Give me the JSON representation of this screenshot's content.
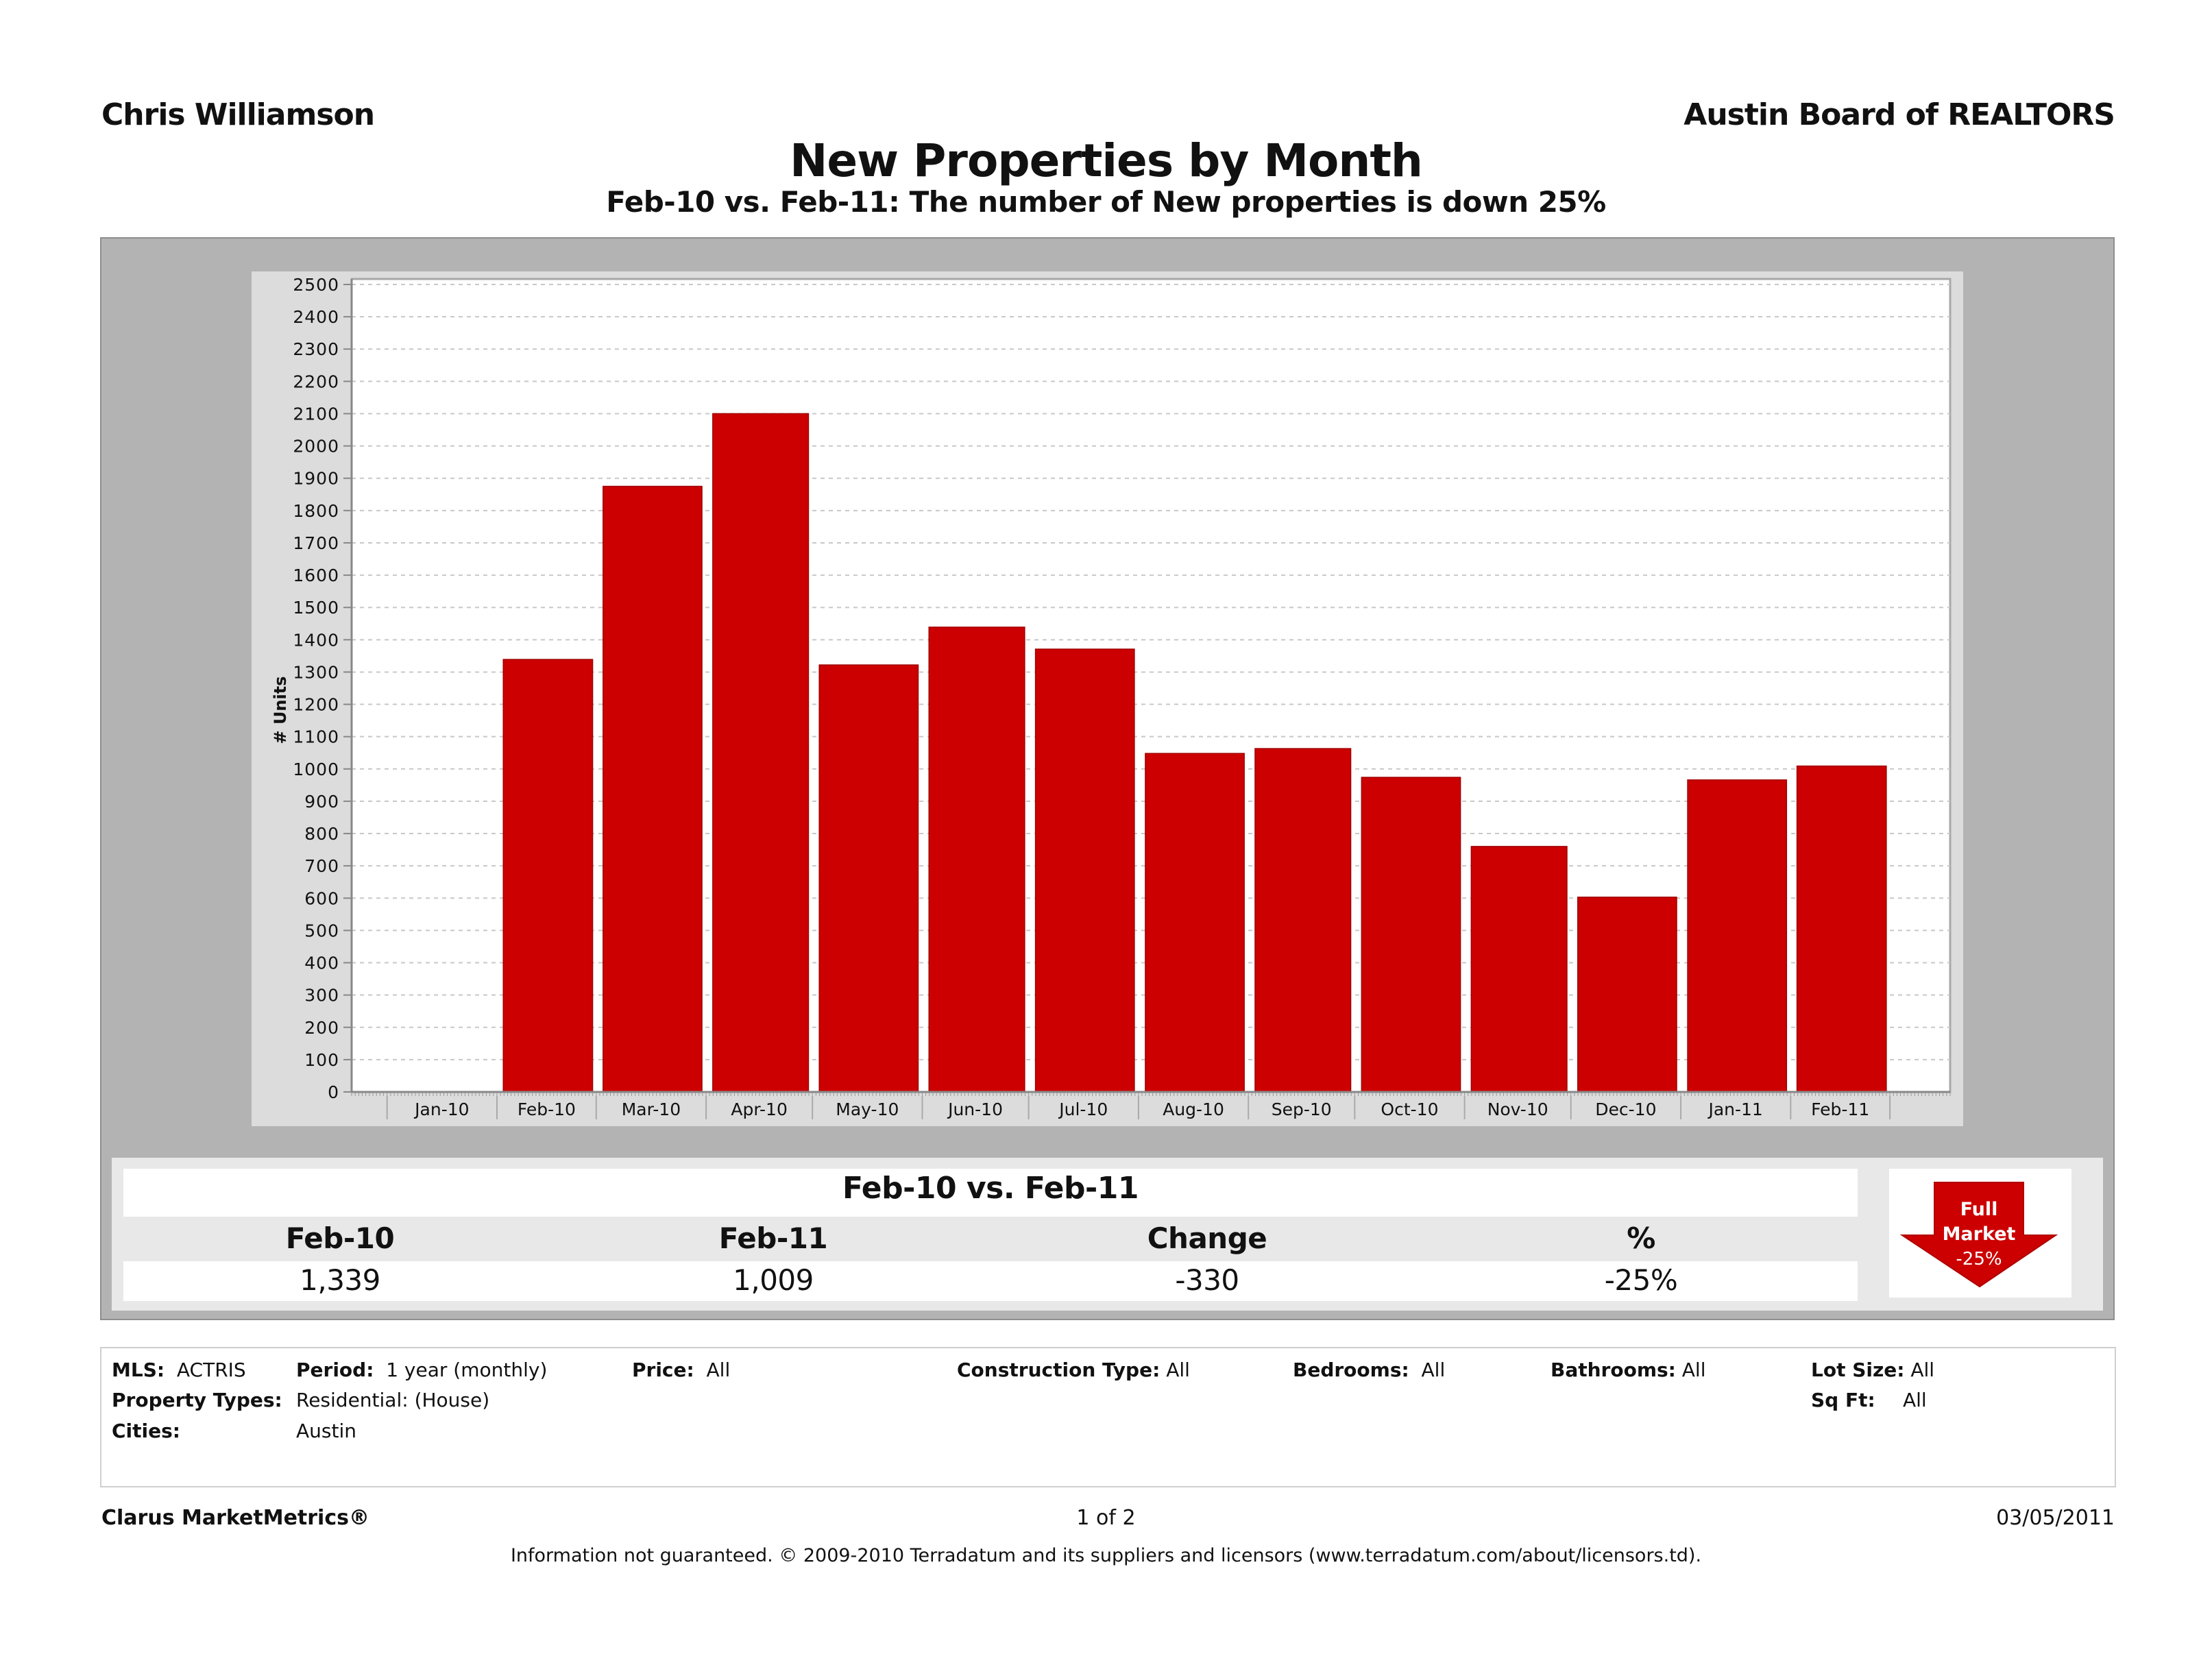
{
  "header": {
    "agent_name": "Chris Williamson",
    "board_name": "Austin Board of REALTORS",
    "title": "New Properties by Month",
    "subtitle": "Feb-10 vs. Feb-11: The number of New properties is down 25%"
  },
  "colors": {
    "bar": "#cc0000",
    "panel_gray": "#b3b3b3",
    "chart_bg": "#dcdcdc",
    "plot_bg": "#ffffff"
  },
  "chart_data": {
    "type": "bar",
    "title": "New Properties by Month",
    "xlabel": "",
    "ylabel": "# Units",
    "ylim": [
      0,
      2500
    ],
    "ytick_step": 100,
    "grid": true,
    "legend": "none",
    "categories": [
      "Jan-10",
      "Feb-10",
      "Mar-10",
      "Apr-10",
      "May-10",
      "Jun-10",
      "Jul-10",
      "Aug-10",
      "Sep-10",
      "Oct-10",
      "Nov-10",
      "Dec-10",
      "Jan-11",
      "Feb-11"
    ],
    "values": [
      null,
      1339,
      1875,
      2100,
      1322,
      1439,
      1371,
      1048,
      1063,
      974,
      760,
      603,
      966,
      1009
    ],
    "yticks": [
      "0",
      "100",
      "200",
      "300",
      "400",
      "500",
      "600",
      "700",
      "800",
      "900",
      "1000",
      "1100",
      "1200",
      "1300",
      "1400",
      "1500",
      "1600",
      "1700",
      "1800",
      "1900",
      "2000",
      "2100",
      "2200",
      "2300",
      "2400",
      "2500"
    ]
  },
  "summary": {
    "title": "Feb-10 vs. Feb-11",
    "columns": [
      "Feb-10",
      "Feb-11",
      "Change",
      "%"
    ],
    "values": [
      "1,339",
      "1,009",
      "-330",
      "-25%"
    ],
    "badge": {
      "line1": "Full",
      "line2": "Market",
      "line3": "-25%",
      "icon": "down-arrow-icon"
    }
  },
  "filters": {
    "mls_label": "MLS:",
    "mls_value": "ACTRIS",
    "period_label": "Period:",
    "period_value": "1 year (monthly)",
    "price_label": "Price:",
    "price_value": "All",
    "construction_label": "Construction Type:",
    "construction_value": "All",
    "bedrooms_label": "Bedrooms:",
    "bedrooms_value": "All",
    "bathrooms_label": "Bathrooms:",
    "bathrooms_value": "All",
    "lot_label": "Lot Size:",
    "lot_value": "All",
    "property_types_label": "Property Types:",
    "property_types_value": "Residential: (House)",
    "sqft_label": "Sq Ft:",
    "sqft_value": "All",
    "cities_label": "Cities:",
    "cities_value": "Austin"
  },
  "footer": {
    "brand": "Clarus MarketMetrics®",
    "page": "1 of 2",
    "date": "03/05/2011",
    "disclaimer": "Information not guaranteed.  © 2009-2010 Terradatum and its suppliers and licensors (www.terradatum.com/about/licensors.td)."
  }
}
